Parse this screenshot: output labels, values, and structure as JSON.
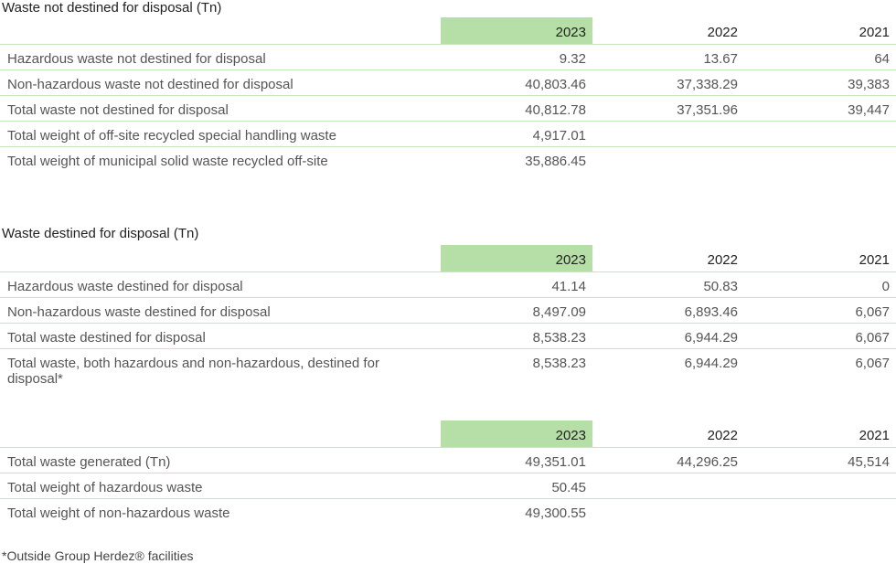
{
  "sections": [
    {
      "title": "Waste not destined for disposal (Tn)",
      "years": [
        "2023",
        "2022",
        "2021"
      ],
      "rows": [
        {
          "label": "Hazardous waste not destined for disposal",
          "v": [
            "9.32",
            "13.67",
            "64"
          ]
        },
        {
          "label": "Non-hazardous waste not destined for disposal",
          "v": [
            "40,803.46",
            "37,338.29",
            "39,383"
          ]
        },
        {
          "label": "Total waste not destined for disposal",
          "v": [
            "40,812.78",
            "37,351.96",
            "39,447"
          ]
        },
        {
          "label": "Total weight of off-site recycled special handling waste",
          "v": [
            "4,917.01",
            "",
            ""
          ]
        },
        {
          "label": "Total weight of municipal solid waste recycled off-site",
          "v": [
            "35,886.45",
            "",
            ""
          ]
        }
      ]
    },
    {
      "title": "Waste destined for disposal (Tn)",
      "years": [
        "2023",
        "2022",
        "2021"
      ],
      "rows": [
        {
          "label": "Hazardous waste destined for disposal",
          "v": [
            "41.14",
            "50.83",
            "0"
          ]
        },
        {
          "label": "Non-hazardous waste destined for disposal",
          "v": [
            "8,497.09",
            "6,893.46",
            "6,067"
          ]
        },
        {
          "label": "Total waste destined for disposal",
          "v": [
            "8,538.23",
            "6,944.29",
            "6,067"
          ]
        },
        {
          "label": "Total waste, both hazardous and non-hazardous, destined for disposal*",
          "v": [
            "8,538.23",
            "6,944.29",
            "6,067"
          ]
        }
      ]
    },
    {
      "title": "",
      "years": [
        "2023",
        "2022",
        "2021"
      ],
      "rows": [
        {
          "label": "Total waste generated (Tn)",
          "v": [
            "49,351.01",
            "44,296.25",
            "45,514"
          ]
        },
        {
          "label": "Total weight of hazardous waste",
          "v": [
            "50.45",
            "",
            ""
          ]
        },
        {
          "label": "Total weight of non-hazardous waste",
          "v": [
            "49,300.55",
            "",
            ""
          ]
        }
      ]
    }
  ],
  "footnote": "*Outside Group Herdez® facilities"
}
